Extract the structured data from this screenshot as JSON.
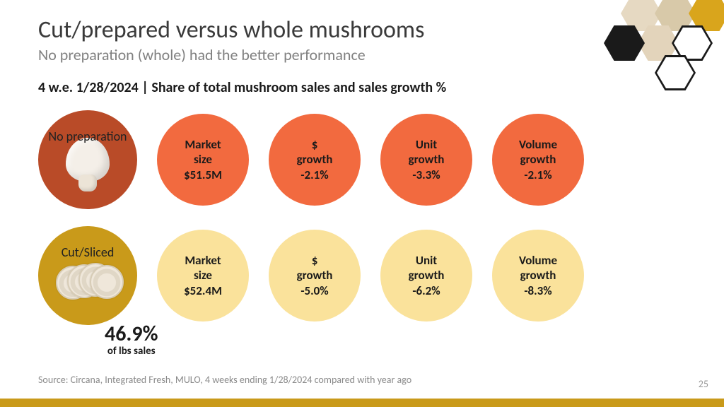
{
  "title": "Cut/prepared versus whole mushrooms",
  "subtitle": "No preparation (whole) had the better performance",
  "section_heading": "4 w.e. 1/28/2024 | Share of total mushroom sales and sales growth %",
  "rows": [
    {
      "lead_label": "No preparation",
      "lead_bg": "#b94b28",
      "metric_bg": "#f26a3f",
      "metrics": [
        {
          "line1": "Market",
          "line2": "size",
          "line3": "$51.5M"
        },
        {
          "line1": "$",
          "line2": "growth",
          "line3": "-2.1%"
        },
        {
          "line1": "Unit",
          "line2": "growth",
          "line3": "-3.3%"
        },
        {
          "line1": "Volume",
          "line2": "growth",
          "line3": "-2.1%"
        }
      ]
    },
    {
      "lead_label": "Cut/Sliced",
      "lead_bg": "#c99a1a",
      "metric_bg": "#fae29b",
      "metrics": [
        {
          "line1": "Market",
          "line2": "size",
          "line3": "$52.4M"
        },
        {
          "line1": "$",
          "line2": "growth",
          "line3": "-5.0%"
        },
        {
          "line1": "Unit",
          "line2": "growth",
          "line3": "-6.2%"
        },
        {
          "line1": "Volume",
          "line2": "growth",
          "line3": "-8.3%"
        }
      ]
    }
  ],
  "callout": {
    "big": "46.9%",
    "small": "of lbs sales"
  },
  "source": "Source: Circana, Integrated Fresh, MULO, 4 weeks ending 1/28/2024 compared with year ago",
  "page_number": "25",
  "bottom_bar_color": "#c99a1a",
  "honeycomb": {
    "outline_color": "#1a1a1a",
    "dark_fill": "#1a1a1a",
    "gold_fill": "#d9a51c",
    "photo_fill": [
      "#e6d9c2",
      "#d8c9a9",
      "#e3d4bb"
    ]
  }
}
